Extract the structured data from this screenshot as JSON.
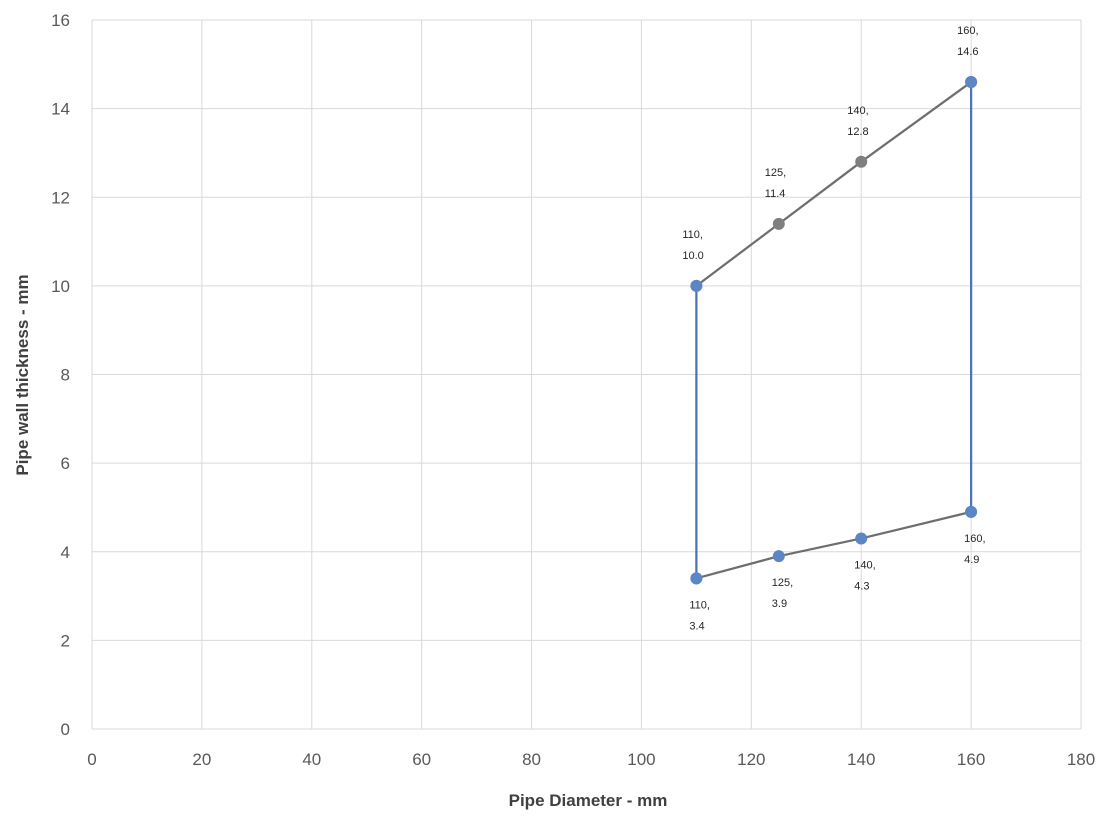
{
  "chart_data": {
    "type": "scatter",
    "title": "",
    "xlabel": "Pipe Diameter - mm",
    "ylabel": "Pipe wall thickness - mm",
    "xlim": [
      0,
      180
    ],
    "ylim": [
      0,
      16
    ],
    "xticks": [
      0,
      20,
      40,
      60,
      80,
      100,
      120,
      140,
      160,
      180
    ],
    "yticks": [
      0,
      2,
      4,
      6,
      8,
      10,
      12,
      14,
      16
    ],
    "xtick_labels": [
      "0",
      "20",
      "40",
      "60",
      "80",
      "100",
      "120",
      "140",
      "160",
      "180"
    ],
    "ytick_labels": [
      "0",
      "2",
      "4",
      "6",
      "8",
      "10",
      "12",
      "14",
      "16"
    ],
    "grid": true,
    "legend": "none",
    "series": [
      {
        "color": "#6e6e6e",
        "marker_color": "#7f7f7f",
        "points": [
          {
            "x": 110,
            "y": 10.0,
            "label_line1": "110,",
            "label_line2": "10.0",
            "label_pos": "above"
          },
          {
            "x": 125,
            "y": 11.4,
            "label_line1": "125,",
            "label_line2": "11.4",
            "label_pos": "above"
          },
          {
            "x": 140,
            "y": 12.8,
            "label_line1": "140,",
            "label_line2": "12.8",
            "label_pos": "above"
          },
          {
            "x": 160,
            "y": 14.6,
            "label_line1": "160,",
            "label_line2": "14.6",
            "label_pos": "above"
          }
        ]
      },
      {
        "color": "#6e6e6e",
        "marker_color": "#5b86c5",
        "points": [
          {
            "x": 110,
            "y": 3.4,
            "label_line1": "110,",
            "label_line2": "3.4",
            "label_pos": "below"
          },
          {
            "x": 125,
            "y": 3.9,
            "label_line1": "125,",
            "label_line2": "3.9",
            "label_pos": "below"
          },
          {
            "x": 140,
            "y": 4.3,
            "label_line1": "140,",
            "label_line2": "4.3",
            "label_pos": "below"
          },
          {
            "x": 160,
            "y": 4.9,
            "label_line1": "160,",
            "label_line2": "4.9",
            "label_pos": "below"
          }
        ]
      },
      {
        "color": "#4a75b5",
        "marker_color": "#5b86c5",
        "points": [
          {
            "x": 110,
            "y": 3.4
          },
          {
            "x": 110,
            "y": 10.0
          }
        ]
      },
      {
        "color": "#4a75b5",
        "marker_color": "#5b86c5",
        "points": [
          {
            "x": 160,
            "y": 4.9
          },
          {
            "x": 160,
            "y": 14.6
          }
        ]
      }
    ]
  }
}
